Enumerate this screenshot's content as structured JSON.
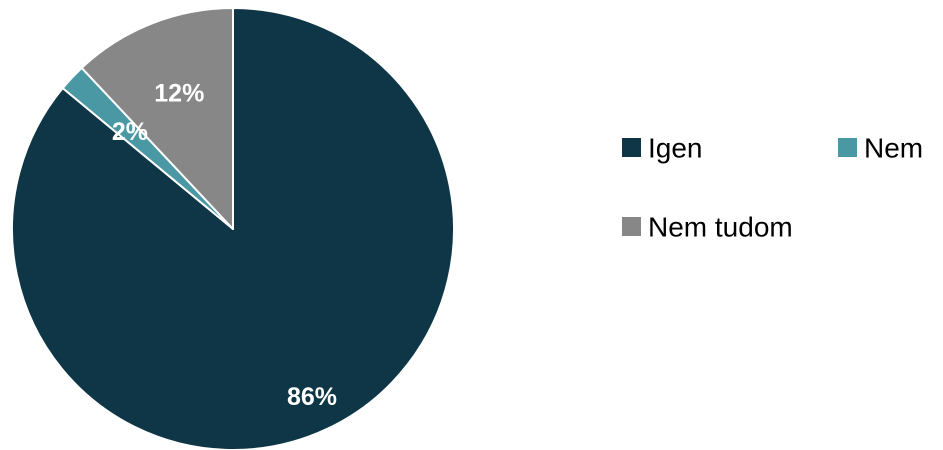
{
  "chart_data": {
    "type": "pie",
    "categories": [
      "Igen",
      "Nem",
      "Nem tudom"
    ],
    "values": [
      86,
      2,
      12
    ],
    "labels": [
      "86%",
      "2%",
      "12%"
    ],
    "colors": [
      "#0f3646",
      "#4a98a4",
      "#878787"
    ],
    "slice_border_color": "#ffffff",
    "start_angle": "12 o'clock, clockwise",
    "legend_position": "right"
  }
}
